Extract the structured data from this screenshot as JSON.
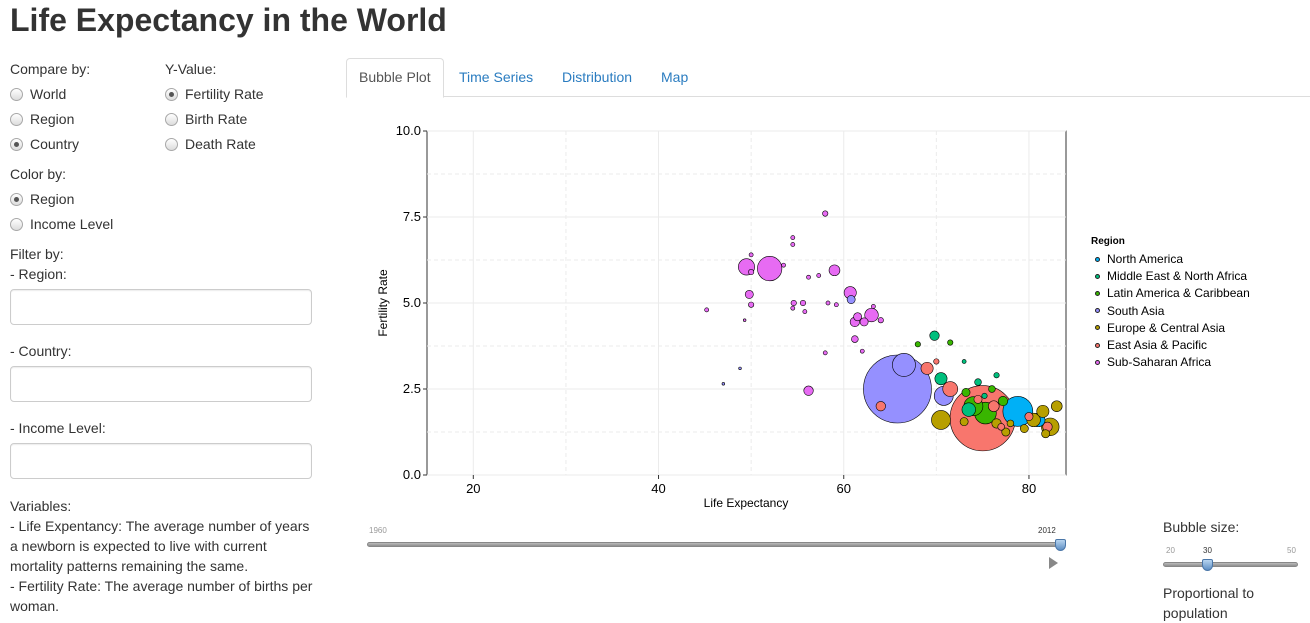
{
  "title": "Life Expectancy in the World",
  "sidebar": {
    "compare_label": "Compare by:",
    "compare_options": [
      "World",
      "Region",
      "Country"
    ],
    "compare_selected": "Country",
    "yvalue_label": "Y-Value:",
    "yvalue_options": [
      "Fertility Rate",
      "Birth Rate",
      "Death Rate"
    ],
    "yvalue_selected": "Fertility Rate",
    "color_label": "Color by:",
    "color_options": [
      "Region",
      "Income Level"
    ],
    "color_selected": "Region",
    "filter_label": "Filter by:",
    "filter_region_label": "- Region:",
    "filter_country_label": "- Country:",
    "filter_income_label": "- Income Level:",
    "variables": [
      "Variables:",
      "- Life Expentancy: The average number of years a newborn is expected to live with current mortality patterns remaining the same.",
      "- Fertility Rate: The average number of births per woman."
    ]
  },
  "tabs": [
    "Bubble Plot",
    "Time Series",
    "Distribution",
    "Map"
  ],
  "active_tab": "Bubble Plot",
  "year_slider": {
    "min": "1960",
    "max": "2012",
    "value": 2012
  },
  "bubble_slider": {
    "label": "Bubble size:",
    "min": "20",
    "max": "50",
    "value": "30",
    "note": "Proportional to population"
  },
  "colors": {
    "North America": "#00b0f6",
    "Middle East & North Africa": "#00bf7d",
    "Latin America & Caribbean": "#39b600",
    "South Asia": "#9590ff",
    "Europe & Central Asia": "#b79f00",
    "East Asia & Pacific": "#f8766d",
    "Sub-Saharan Africa": "#e76bf3"
  },
  "chart_data": {
    "type": "scatter",
    "xlabel": "Life Expectancy",
    "ylabel": "Fertility Rate",
    "xlim": [
      15,
      84
    ],
    "ylim": [
      0,
      10
    ],
    "xticks": [
      20,
      40,
      60,
      80
    ],
    "yticks": [
      0.0,
      2.5,
      5.0,
      7.5,
      10.0
    ],
    "ytick_labels": [
      "0.0",
      "2.5",
      "5.0",
      "7.5",
      "10.0"
    ],
    "grid": true,
    "legend_title": "Region",
    "legend_position": "right",
    "legend": [
      "North America",
      "Middle East & North Africa",
      "Latin America & Caribbean",
      "South Asia",
      "Europe & Central Asia",
      "East Asia & Pacific",
      "Sub-Saharan Africa"
    ],
    "points": [
      {
        "region": "Sub-Saharan Africa",
        "x": 58.0,
        "y": 7.6,
        "size": 4
      },
      {
        "region": "Sub-Saharan Africa",
        "x": 54.5,
        "y": 6.9,
        "size": 3
      },
      {
        "region": "Sub-Saharan Africa",
        "x": 54.5,
        "y": 6.7,
        "size": 3
      },
      {
        "region": "Sub-Saharan Africa",
        "x": 50.0,
        "y": 6.4,
        "size": 3
      },
      {
        "region": "Sub-Saharan Africa",
        "x": 49.5,
        "y": 6.05,
        "size": 12
      },
      {
        "region": "Sub-Saharan Africa",
        "x": 52.0,
        "y": 6.0,
        "size": 18
      },
      {
        "region": "Sub-Saharan Africa",
        "x": 53.5,
        "y": 6.1,
        "size": 3
      },
      {
        "region": "Sub-Saharan Africa",
        "x": 56.2,
        "y": 5.75,
        "size": 3
      },
      {
        "region": "Sub-Saharan Africa",
        "x": 50.0,
        "y": 5.9,
        "size": 4
      },
      {
        "region": "Sub-Saharan Africa",
        "x": 57.3,
        "y": 5.8,
        "size": 3
      },
      {
        "region": "Sub-Saharan Africa",
        "x": 59.0,
        "y": 5.95,
        "size": 8
      },
      {
        "region": "Sub-Saharan Africa",
        "x": 49.8,
        "y": 5.25,
        "size": 6
      },
      {
        "region": "Sub-Saharan Africa",
        "x": 60.7,
        "y": 5.3,
        "size": 9
      },
      {
        "region": "Sub-Saharan Africa",
        "x": 50.0,
        "y": 4.95,
        "size": 4
      },
      {
        "region": "Sub-Saharan Africa",
        "x": 54.6,
        "y": 5.0,
        "size": 4
      },
      {
        "region": "Sub-Saharan Africa",
        "x": 54.5,
        "y": 4.85,
        "size": 3
      },
      {
        "region": "Sub-Saharan Africa",
        "x": 55.6,
        "y": 5.0,
        "size": 4
      },
      {
        "region": "Sub-Saharan Africa",
        "x": 58.3,
        "y": 5.0,
        "size": 3
      },
      {
        "region": "Sub-Saharan Africa",
        "x": 59.2,
        "y": 4.95,
        "size": 3
      },
      {
        "region": "Sub-Saharan Africa",
        "x": 55.8,
        "y": 4.75,
        "size": 3
      },
      {
        "region": "Sub-Saharan Africa",
        "x": 45.2,
        "y": 4.8,
        "size": 3
      },
      {
        "region": "Sub-Saharan Africa",
        "x": 49.3,
        "y": 4.5,
        "size": 2
      },
      {
        "region": "Sub-Saharan Africa",
        "x": 61.5,
        "y": 4.6,
        "size": 6
      },
      {
        "region": "Sub-Saharan Africa",
        "x": 61.2,
        "y": 4.45,
        "size": 7
      },
      {
        "region": "Sub-Saharan Africa",
        "x": 62.2,
        "y": 4.45,
        "size": 6
      },
      {
        "region": "Sub-Saharan Africa",
        "x": 63.0,
        "y": 4.65,
        "size": 10
      },
      {
        "region": "Sub-Saharan Africa",
        "x": 64.0,
        "y": 4.5,
        "size": 4
      },
      {
        "region": "Sub-Saharan Africa",
        "x": 63.2,
        "y": 4.9,
        "size": 3
      },
      {
        "region": "Sub-Saharan Africa",
        "x": 61.2,
        "y": 3.95,
        "size": 5
      },
      {
        "region": "Sub-Saharan Africa",
        "x": 62.0,
        "y": 3.6,
        "size": 3
      },
      {
        "region": "Sub-Saharan Africa",
        "x": 58.0,
        "y": 3.55,
        "size": 3
      },
      {
        "region": "Sub-Saharan Africa",
        "x": 56.2,
        "y": 2.45,
        "size": 7
      },
      {
        "region": "South Asia",
        "x": 60.8,
        "y": 5.1,
        "size": 6
      },
      {
        "region": "South Asia",
        "x": 47.0,
        "y": 2.65,
        "size": 2
      },
      {
        "region": "South Asia",
        "x": 48.8,
        "y": 3.1,
        "size": 2
      },
      {
        "region": "South Asia",
        "x": 66.5,
        "y": 3.2,
        "size": 17
      },
      {
        "region": "South Asia",
        "x": 65.8,
        "y": 2.5,
        "size": 50
      },
      {
        "region": "South Asia",
        "x": 70.8,
        "y": 2.3,
        "size": 14
      },
      {
        "region": "East Asia & Pacific",
        "x": 64.0,
        "y": 2.0,
        "size": 7
      },
      {
        "region": "East Asia & Pacific",
        "x": 69.0,
        "y": 3.1,
        "size": 9
      },
      {
        "region": "East Asia & Pacific",
        "x": 71.5,
        "y": 2.5,
        "size": 11
      },
      {
        "region": "East Asia & Pacific",
        "x": 70.0,
        "y": 3.3,
        "size": 4
      },
      {
        "region": "East Asia & Pacific",
        "x": 75.0,
        "y": 1.65,
        "size": 48
      },
      {
        "region": "East Asia & Pacific",
        "x": 76.2,
        "y": 2.0,
        "size": 8
      },
      {
        "region": "East Asia & Pacific",
        "x": 74.5,
        "y": 2.2,
        "size": 6
      },
      {
        "region": "East Asia & Pacific",
        "x": 77.0,
        "y": 1.4,
        "size": 5
      },
      {
        "region": "East Asia & Pacific",
        "x": 80.0,
        "y": 1.7,
        "size": 6
      },
      {
        "region": "East Asia & Pacific",
        "x": 82.0,
        "y": 1.4,
        "size": 7
      },
      {
        "region": "North America",
        "x": 78.8,
        "y": 1.85,
        "size": 22
      },
      {
        "region": "North America",
        "x": 81.0,
        "y": 1.6,
        "size": 10
      },
      {
        "region": "Middle East & North Africa",
        "x": 69.8,
        "y": 4.05,
        "size": 7
      },
      {
        "region": "Middle East & North Africa",
        "x": 73.0,
        "y": 3.3,
        "size": 3
      },
      {
        "region": "Middle East & North Africa",
        "x": 70.5,
        "y": 2.8,
        "size": 9
      },
      {
        "region": "Middle East & North Africa",
        "x": 74.5,
        "y": 2.7,
        "size": 5
      },
      {
        "region": "Middle East & North Africa",
        "x": 73.5,
        "y": 1.9,
        "size": 10
      },
      {
        "region": "Middle East & North Africa",
        "x": 76.5,
        "y": 2.9,
        "size": 4
      },
      {
        "region": "Middle East & North Africa",
        "x": 75.2,
        "y": 2.3,
        "size": 4
      },
      {
        "region": "Latin America & Caribbean",
        "x": 68.0,
        "y": 3.8,
        "size": 4
      },
      {
        "region": "Latin America & Caribbean",
        "x": 71.5,
        "y": 3.85,
        "size": 4
      },
      {
        "region": "Latin America & Caribbean",
        "x": 73.2,
        "y": 2.4,
        "size": 6
      },
      {
        "region": "Latin America & Caribbean",
        "x": 74.0,
        "y": 2.0,
        "size": 14
      },
      {
        "region": "Latin America & Caribbean",
        "x": 75.3,
        "y": 1.8,
        "size": 16
      },
      {
        "region": "Latin America & Caribbean",
        "x": 77.2,
        "y": 2.15,
        "size": 7
      },
      {
        "region": "Latin America & Caribbean",
        "x": 76.0,
        "y": 2.5,
        "size": 5
      },
      {
        "region": "Europe & Central Asia",
        "x": 70.5,
        "y": 1.6,
        "size": 14
      },
      {
        "region": "Europe & Central Asia",
        "x": 73.0,
        "y": 1.55,
        "size": 6
      },
      {
        "region": "Europe & Central Asia",
        "x": 76.5,
        "y": 1.5,
        "size": 7
      },
      {
        "region": "Europe & Central Asia",
        "x": 77.5,
        "y": 1.25,
        "size": 6
      },
      {
        "region": "Europe & Central Asia",
        "x": 79.5,
        "y": 1.35,
        "size": 6
      },
      {
        "region": "Europe & Central Asia",
        "x": 80.5,
        "y": 1.6,
        "size": 10
      },
      {
        "region": "Europe & Central Asia",
        "x": 81.5,
        "y": 1.85,
        "size": 9
      },
      {
        "region": "Europe & Central Asia",
        "x": 82.3,
        "y": 1.4,
        "size": 13
      },
      {
        "region": "Europe & Central Asia",
        "x": 83.0,
        "y": 2.0,
        "size": 8
      },
      {
        "region": "Europe & Central Asia",
        "x": 81.8,
        "y": 1.2,
        "size": 6
      },
      {
        "region": "Europe & Central Asia",
        "x": 78.0,
        "y": 1.5,
        "size": 5
      }
    ]
  }
}
